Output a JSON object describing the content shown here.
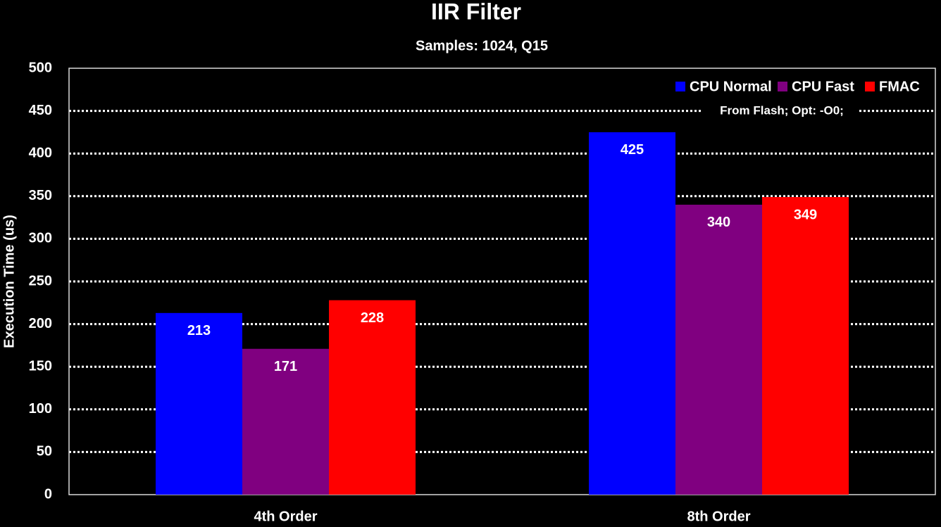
{
  "chart_data": {
    "type": "bar",
    "title": "IIR Filter",
    "subtitle": "Samples: 1024, Q15",
    "y_label": "Execution Time (us)",
    "annotation": "From Flash; Opt: -O0;",
    "categories": [
      "4th Order",
      "8th Order"
    ],
    "series": [
      {
        "name": "CPU Normal",
        "color": "#0000ff",
        "values": [
          213,
          425
        ]
      },
      {
        "name": "CPU Fast",
        "color": "#800080",
        "values": [
          171,
          340
        ]
      },
      {
        "name": "FMAC",
        "color": "#ff0000",
        "values": [
          228,
          349
        ]
      }
    ],
    "ylim": [
      0,
      500
    ],
    "yticks": [
      0,
      50,
      100,
      150,
      200,
      250,
      300,
      350,
      400,
      450,
      500
    ],
    "grid": true,
    "legend": "top-right"
  }
}
